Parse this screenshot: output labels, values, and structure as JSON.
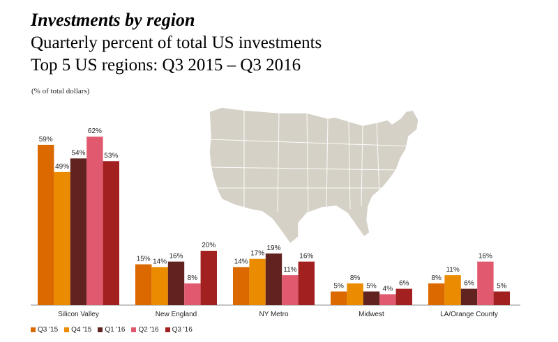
{
  "title": "Investments by region",
  "subtitle_line1": "Quarterly percent of total US investments",
  "subtitle_line2": "Top 5 US regions: Q3 2015 – Q3 2016",
  "unit_note": "(% of total dollars)",
  "chart_data": {
    "type": "bar",
    "categories": [
      "Silicon Valley",
      "New England",
      "NY Metro",
      "Midwest",
      "LA/Orange County"
    ],
    "series": [
      {
        "name": "Q3 '15",
        "color": "#DC6900",
        "values": [
          59,
          15,
          14,
          5,
          8
        ]
      },
      {
        "name": "Q4 '15",
        "color": "#EB8C00",
        "values": [
          49,
          14,
          17,
          8,
          11
        ]
      },
      {
        "name": "Q1 '16",
        "color": "#602320",
        "values": [
          54,
          16,
          19,
          5,
          6
        ]
      },
      {
        "name": "Q2 '16",
        "color": "#E0596E",
        "values": [
          62,
          8,
          11,
          4,
          16
        ]
      },
      {
        "name": "Q3 '16",
        "color": "#A32020",
        "values": [
          53,
          20,
          16,
          6,
          5
        ]
      }
    ],
    "value_suffix": "%",
    "ylim": [
      0,
      62
    ],
    "grid": false,
    "legend_position": "bottom-left",
    "background_map": "us-map-silhouette",
    "map_color": "#D6D1C7"
  }
}
